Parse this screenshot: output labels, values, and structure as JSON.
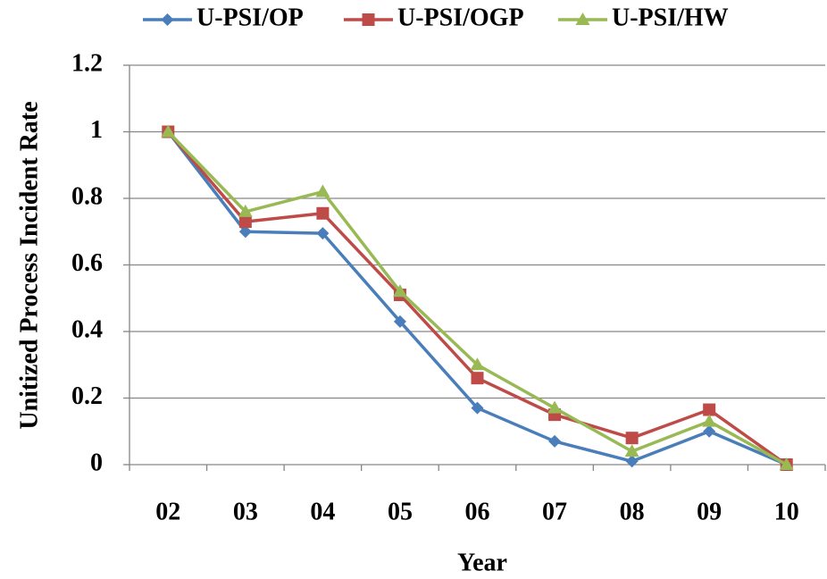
{
  "chart_data": {
    "type": "line",
    "categories": [
      "02",
      "03",
      "04",
      "05",
      "06",
      "07",
      "08",
      "09",
      "10"
    ],
    "series": [
      {
        "name": "U-PSI/OP",
        "color": "#4a7ebb",
        "marker": "diamond",
        "values": [
          1,
          0.7,
          0.695,
          0.43,
          0.17,
          0.07,
          0.01,
          0.1,
          0
        ]
      },
      {
        "name": "U-PSI/OGP",
        "color": "#be4b48",
        "marker": "square",
        "values": [
          1,
          0.73,
          0.755,
          0.51,
          0.26,
          0.15,
          0.08,
          0.165,
          0
        ]
      },
      {
        "name": "U-PSI/HW",
        "color": "#98b954",
        "marker": "triangle",
        "values": [
          1,
          0.76,
          0.82,
          0.52,
          0.3,
          0.17,
          0.04,
          0.13,
          0
        ]
      }
    ],
    "ylabel": "Unitized Process Incident Rate",
    "xlabel": "Year",
    "ylim": [
      0,
      1.2
    ],
    "yticks": [
      0,
      0.2,
      0.4,
      0.6,
      0.8,
      1,
      1.2
    ],
    "grid": true
  }
}
